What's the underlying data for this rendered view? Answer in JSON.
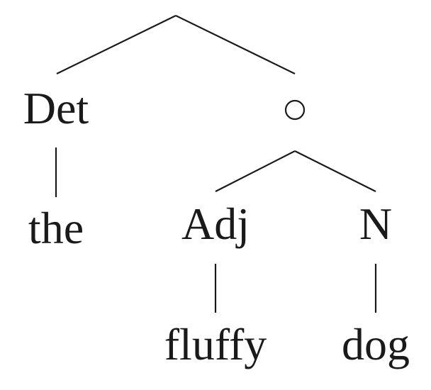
{
  "tree": {
    "nodes": {
      "det": "Det",
      "adj": "Adj",
      "n": "N"
    },
    "leaves": {
      "the": "the",
      "fluffy": "fluffy",
      "dog": "dog"
    }
  }
}
